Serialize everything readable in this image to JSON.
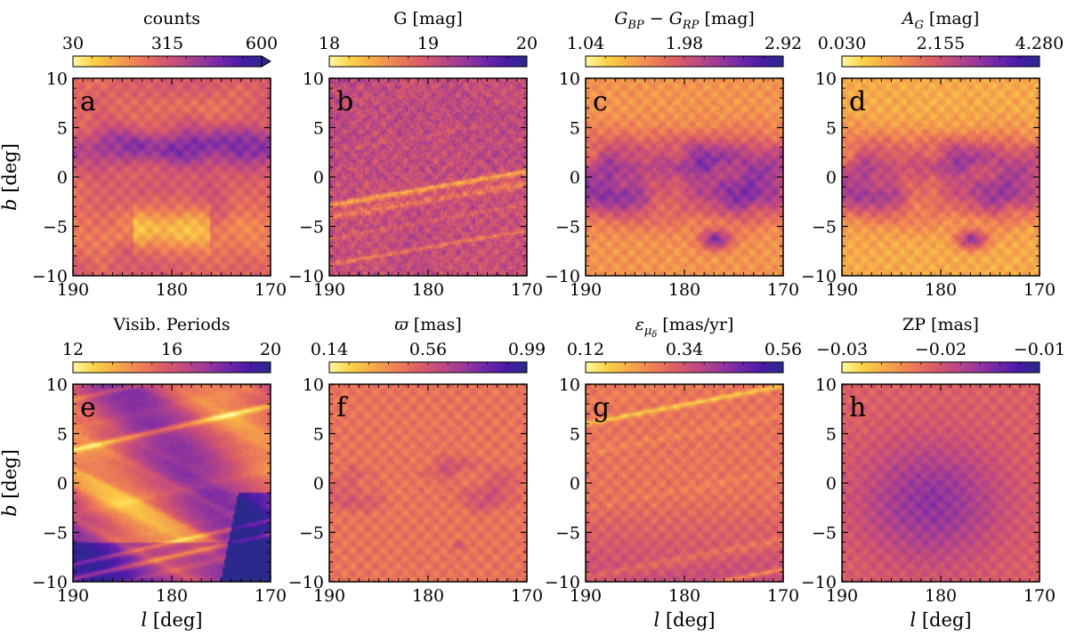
{
  "chart_data": [
    {
      "type": "heatmap",
      "panel_label": "a",
      "cbar_label": "counts",
      "cbar_ticks": [
        "30",
        "315",
        "600"
      ],
      "cbar_range": [
        30,
        600
      ],
      "cbar_extend": "max",
      "field": "counts",
      "x_ticks": [
        "190",
        "180",
        "170"
      ],
      "y_ticks": [
        "10",
        "5",
        "0",
        "−5",
        "−10"
      ],
      "xlim": [
        190,
        170
      ],
      "ylim": [
        -10,
        10
      ],
      "xlabel": "",
      "ylabel": "b [deg]"
    },
    {
      "type": "heatmap",
      "panel_label": "b",
      "cbar_label": "G [mag]",
      "cbar_ticks": [
        "18",
        "19",
        "20"
      ],
      "cbar_range": [
        18,
        20
      ],
      "field": "gmag",
      "x_ticks": [
        "190",
        "180",
        "170"
      ],
      "y_ticks": [
        "10",
        "5",
        "0",
        "−5",
        "−10"
      ],
      "xlim": [
        190,
        170
      ],
      "ylim": [
        -10,
        10
      ],
      "xlabel": "",
      "ylabel": ""
    },
    {
      "type": "heatmap",
      "panel_label": "c",
      "cbar_label": "G_BP − G_RP [mag]",
      "cbar_ticks": [
        "1.04",
        "1.98",
        "2.92"
      ],
      "cbar_range": [
        1.04,
        2.92
      ],
      "field": "color",
      "x_ticks": [
        "190",
        "180",
        "170"
      ],
      "y_ticks": [
        "10",
        "5",
        "0",
        "−5",
        "−10"
      ],
      "xlim": [
        190,
        170
      ],
      "ylim": [
        -10,
        10
      ],
      "xlabel": "",
      "ylabel": ""
    },
    {
      "type": "heatmap",
      "panel_label": "d",
      "cbar_label": "A_G [mag]",
      "cbar_ticks": [
        "0.030",
        "2.155",
        "4.280"
      ],
      "cbar_range": [
        0.03,
        4.28
      ],
      "field": "extinction",
      "x_ticks": [
        "190",
        "180",
        "170"
      ],
      "y_ticks": [
        "10",
        "5",
        "0",
        "−5",
        "−10"
      ],
      "xlim": [
        190,
        170
      ],
      "ylim": [
        -10,
        10
      ],
      "xlabel": "",
      "ylabel": ""
    },
    {
      "type": "heatmap",
      "panel_label": "e",
      "cbar_label": "Visib. Periods",
      "cbar_ticks": [
        "12",
        "16",
        "20"
      ],
      "cbar_range": [
        12,
        20
      ],
      "field": "visib",
      "x_ticks": [
        "190",
        "180",
        "170"
      ],
      "y_ticks": [
        "10",
        "5",
        "0",
        "−5",
        "−10"
      ],
      "xlim": [
        190,
        170
      ],
      "ylim": [
        -10,
        10
      ],
      "xlabel": "l [deg]",
      "ylabel": "b [deg]"
    },
    {
      "type": "heatmap",
      "panel_label": "f",
      "cbar_label": "ϖ [mas]",
      "cbar_ticks": [
        "0.14",
        "0.56",
        "0.99"
      ],
      "cbar_range": [
        0.14,
        0.99
      ],
      "field": "parallax",
      "x_ticks": [
        "190",
        "180",
        "170"
      ],
      "y_ticks": [
        "10",
        "5",
        "0",
        "−5",
        "−10"
      ],
      "xlim": [
        190,
        170
      ],
      "ylim": [
        -10,
        10
      ],
      "xlabel": "",
      "ylabel": ""
    },
    {
      "type": "heatmap",
      "panel_label": "g",
      "cbar_label": "ε_μδ [mas/yr]",
      "cbar_ticks": [
        "0.12",
        "0.34",
        "0.56"
      ],
      "cbar_range": [
        0.12,
        0.56
      ],
      "field": "pm_error",
      "x_ticks": [
        "190",
        "180",
        "170"
      ],
      "y_ticks": [
        "10",
        "5",
        "0",
        "−5",
        "−10"
      ],
      "xlim": [
        190,
        170
      ],
      "ylim": [
        -10,
        10
      ],
      "xlabel": "l [deg]",
      "ylabel": ""
    },
    {
      "type": "heatmap",
      "panel_label": "h",
      "cbar_label": "ZP [mas]",
      "cbar_ticks": [
        "−0.03",
        "−0.02",
        "−0.01"
      ],
      "cbar_range": [
        -0.03,
        -0.01
      ],
      "field": "zeropoint",
      "x_ticks": [
        "190",
        "180",
        "170"
      ],
      "y_ticks": [
        "10",
        "5",
        "0",
        "−5",
        "−10"
      ],
      "xlim": [
        190,
        170
      ],
      "ylim": [
        -10,
        10
      ],
      "xlabel": "l [deg]",
      "ylabel": ""
    }
  ],
  "colormap": "plasma_r",
  "colormap_stops": [
    "#fff9a0",
    "#fcd045",
    "#f5a94a",
    "#ef8255",
    "#de6064",
    "#c14b7e",
    "#9d3b98",
    "#7428a8",
    "#4a1aa8",
    "#2b2a8c"
  ]
}
